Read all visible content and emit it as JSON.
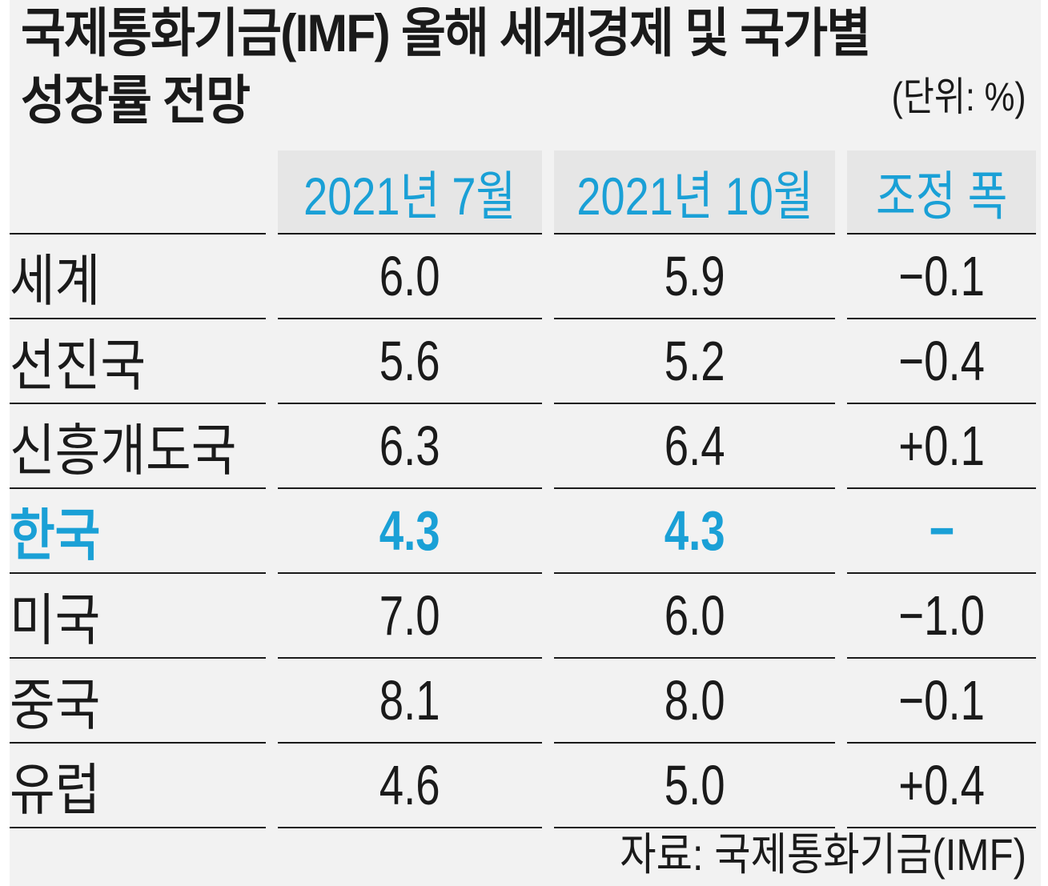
{
  "title_line_1": "국제통화기금(IMF) 올해 세계경제 및 국가별",
  "title_line_2": "성장률 전망",
  "unit_note": "(단위: %)",
  "source_note": "자료: 국제통화기금(IMF)",
  "colors": {
    "accent": "#1aa0d6",
    "text": "#1a1a1a",
    "background": "#f2f2f2",
    "header_background": "#e6e6e6"
  },
  "highlighted_row": "한국",
  "chart_data": {
    "type": "table",
    "title": "국제통화기금(IMF) 올해 세계경제 및 국가별 성장률 전망",
    "unit": "%",
    "columns": [
      "2021년 7월",
      "2021년 10월",
      "조정 폭"
    ],
    "rows": [
      {
        "region": "세계",
        "jul_2021": "6.0",
        "oct_2021": "5.9",
        "adjustment": "−0.1"
      },
      {
        "region": "선진국",
        "jul_2021": "5.6",
        "oct_2021": "5.2",
        "adjustment": "−0.4"
      },
      {
        "region": "신흥개도국",
        "jul_2021": "6.3",
        "oct_2021": "6.4",
        "adjustment": "+0.1"
      },
      {
        "region": "한국",
        "jul_2021": "4.3",
        "oct_2021": "4.3",
        "adjustment": "−"
      },
      {
        "region": "미국",
        "jul_2021": "7.0",
        "oct_2021": "6.0",
        "adjustment": "−1.0"
      },
      {
        "region": "중국",
        "jul_2021": "8.1",
        "oct_2021": "8.0",
        "adjustment": "−0.1"
      },
      {
        "region": "유럽",
        "jul_2021": "4.6",
        "oct_2021": "5.0",
        "adjustment": "+0.4"
      }
    ],
    "source": "국제통화기금(IMF)"
  }
}
